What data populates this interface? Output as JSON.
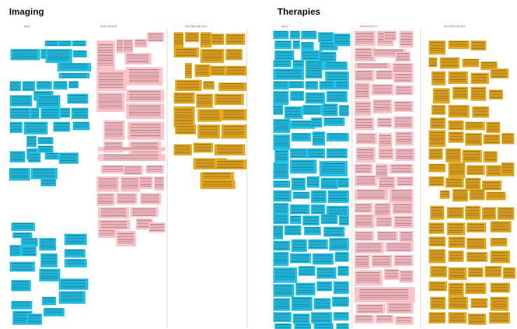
{
  "boards": [
    {
      "title": "Imaging",
      "columns": [
        {
          "label": "WHO"
        },
        {
          "label": "PAIN POINTS"
        },
        {
          "label": "OPPORTUNITIES"
        }
      ]
    },
    {
      "title": "Therapies",
      "columns": [
        {
          "label": "WHO"
        },
        {
          "label": "PAIN POINTS"
        },
        {
          "label": "OPPORTUNITIES"
        }
      ]
    }
  ],
  "note_colors": {
    "who": "#22c2e8",
    "pain_points": "#ffc2c8",
    "opportunities": "#e6a81f"
  }
}
